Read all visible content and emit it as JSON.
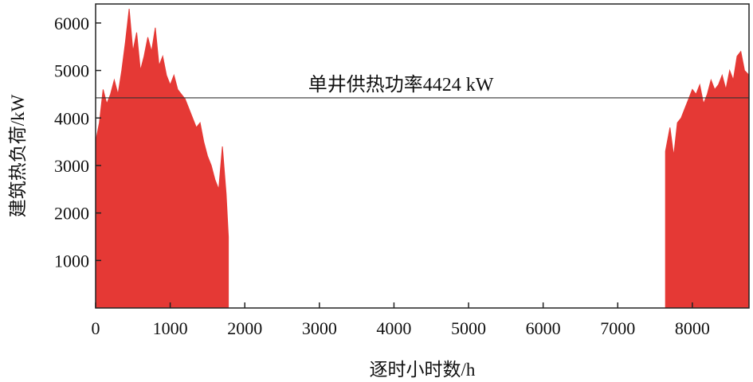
{
  "chart_data": {
    "type": "area",
    "xlabel": "逐时小时数/h",
    "ylabel": "建筑热负荷/kW",
    "xlim": [
      0,
      8760
    ],
    "ylim": [
      0,
      6400
    ],
    "grid": false,
    "x_ticks": [
      "0",
      "1000",
      "2000",
      "3000",
      "4000",
      "5000",
      "6000",
      "7000",
      "8000"
    ],
    "y_ticks": [
      "1000",
      "2000",
      "3000",
      "4000",
      "5000",
      "6000"
    ],
    "series": [
      {
        "color": "#e53935",
        "values": [
          [
            0,
            3500
          ],
          [
            50,
            3900
          ],
          [
            100,
            4600
          ],
          [
            150,
            4300
          ],
          [
            200,
            4500
          ],
          [
            250,
            4800
          ],
          [
            300,
            4500
          ],
          [
            350,
            5000
          ],
          [
            400,
            5600
          ],
          [
            450,
            6300
          ],
          [
            500,
            5400
          ],
          [
            550,
            5800
          ],
          [
            600,
            5000
          ],
          [
            650,
            5300
          ],
          [
            700,
            5700
          ],
          [
            750,
            5400
          ],
          [
            800,
            5900
          ],
          [
            850,
            5100
          ],
          [
            900,
            5300
          ],
          [
            950,
            4900
          ],
          [
            1000,
            4700
          ],
          [
            1050,
            4900
          ],
          [
            1100,
            4600
          ],
          [
            1150,
            4500
          ],
          [
            1200,
            4400
          ],
          [
            1250,
            4200
          ],
          [
            1300,
            4000
          ],
          [
            1350,
            3800
          ],
          [
            1400,
            3900
          ],
          [
            1450,
            3500
          ],
          [
            1500,
            3200
          ],
          [
            1550,
            3000
          ],
          [
            1600,
            2700
          ],
          [
            1650,
            2500
          ],
          [
            1700,
            3400
          ],
          [
            1750,
            2400
          ],
          [
            1780,
            1500
          ],
          [
            7640,
            3300
          ],
          [
            7700,
            3800
          ],
          [
            7750,
            3200
          ],
          [
            7800,
            3900
          ],
          [
            7850,
            4000
          ],
          [
            7900,
            4200
          ],
          [
            7950,
            4400
          ],
          [
            8000,
            4600
          ],
          [
            8050,
            4500
          ],
          [
            8100,
            4700
          ],
          [
            8150,
            4300
          ],
          [
            8200,
            4500
          ],
          [
            8250,
            4800
          ],
          [
            8300,
            4600
          ],
          [
            8350,
            4700
          ],
          [
            8400,
            4900
          ],
          [
            8450,
            4600
          ],
          [
            8500,
            5000
          ],
          [
            8550,
            4800
          ],
          [
            8600,
            5300
          ],
          [
            8650,
            5400
          ],
          [
            8700,
            5000
          ],
          [
            8760,
            4900
          ]
        ]
      }
    ],
    "reference_line": {
      "value": 4424,
      "label": "单井供热功率4424 kW"
    }
  }
}
